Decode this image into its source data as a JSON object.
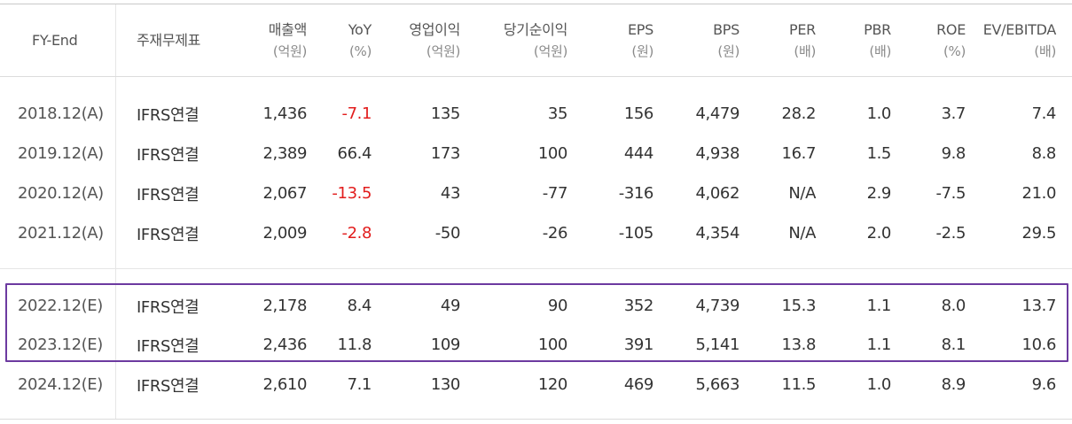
{
  "headers": {
    "fy_end": "FY-End",
    "main_statement": "주재무제표",
    "revenue": {
      "label": "매출액",
      "unit": "(억원)"
    },
    "yoy": {
      "label": "YoY",
      "unit": "(%)"
    },
    "operating_profit": {
      "label": "영업이익",
      "unit": "(억원)"
    },
    "net_income": {
      "label": "당기순이익",
      "unit": "(억원)"
    },
    "eps": {
      "label": "EPS",
      "unit": "(원)"
    },
    "bps": {
      "label": "BPS",
      "unit": "(원)"
    },
    "per": {
      "label": "PER",
      "unit": "(배)"
    },
    "pbr": {
      "label": "PBR",
      "unit": "(배)"
    },
    "roe": {
      "label": "ROE",
      "unit": "(%)"
    },
    "ev_ebitda": {
      "label": "EV/EBITDA",
      "unit": "(배)"
    }
  },
  "rows": [
    {
      "fy": "2018.12(A)",
      "type": "IFRS연결",
      "revenue": "1,436",
      "yoy": "-7.1",
      "yoy_negative": true,
      "op": "135",
      "net": "35",
      "eps": "156",
      "bps": "4,479",
      "per": "28.2",
      "pbr": "1.0",
      "roe": "3.7",
      "ev": "7.4"
    },
    {
      "fy": "2019.12(A)",
      "type": "IFRS연결",
      "revenue": "2,389",
      "yoy": "66.4",
      "yoy_negative": false,
      "op": "173",
      "net": "100",
      "eps": "444",
      "bps": "4,938",
      "per": "16.7",
      "pbr": "1.5",
      "roe": "9.8",
      "ev": "8.8"
    },
    {
      "fy": "2020.12(A)",
      "type": "IFRS연결",
      "revenue": "2,067",
      "yoy": "-13.5",
      "yoy_negative": true,
      "op": "43",
      "net": "-77",
      "eps": "-316",
      "bps": "4,062",
      "per": "N/A",
      "pbr": "2.9",
      "roe": "-7.5",
      "ev": "21.0"
    },
    {
      "fy": "2021.12(A)",
      "type": "IFRS연결",
      "revenue": "2,009",
      "yoy": "-2.8",
      "yoy_negative": true,
      "op": "-50",
      "net": "-26",
      "eps": "-105",
      "bps": "4,354",
      "per": "N/A",
      "pbr": "2.0",
      "roe": "-2.5",
      "ev": "29.5"
    },
    {
      "fy": "2022.12(E)",
      "type": "IFRS연결",
      "revenue": "2,178",
      "yoy": "8.4",
      "yoy_negative": false,
      "op": "49",
      "net": "90",
      "eps": "352",
      "bps": "4,739",
      "per": "15.3",
      "pbr": "1.1",
      "roe": "8.0",
      "ev": "13.7"
    },
    {
      "fy": "2023.12(E)",
      "type": "IFRS연결",
      "revenue": "2,436",
      "yoy": "11.8",
      "yoy_negative": false,
      "op": "109",
      "net": "100",
      "eps": "391",
      "bps": "5,141",
      "per": "13.8",
      "pbr": "1.1",
      "roe": "8.1",
      "ev": "10.6"
    },
    {
      "fy": "2024.12(E)",
      "type": "IFRS연결",
      "revenue": "2,610",
      "yoy": "7.1",
      "yoy_negative": false,
      "op": "130",
      "net": "120",
      "eps": "469",
      "bps": "5,663",
      "per": "11.5",
      "pbr": "1.0",
      "roe": "8.9",
      "ev": "9.6"
    }
  ],
  "colors": {
    "negative": "#e21d1d",
    "highlight_border": "#6c3aa0",
    "text": "#333333",
    "header_text": "#555555"
  },
  "highlighted_rows": [
    "2022.12(E)",
    "2023.12(E)"
  ]
}
